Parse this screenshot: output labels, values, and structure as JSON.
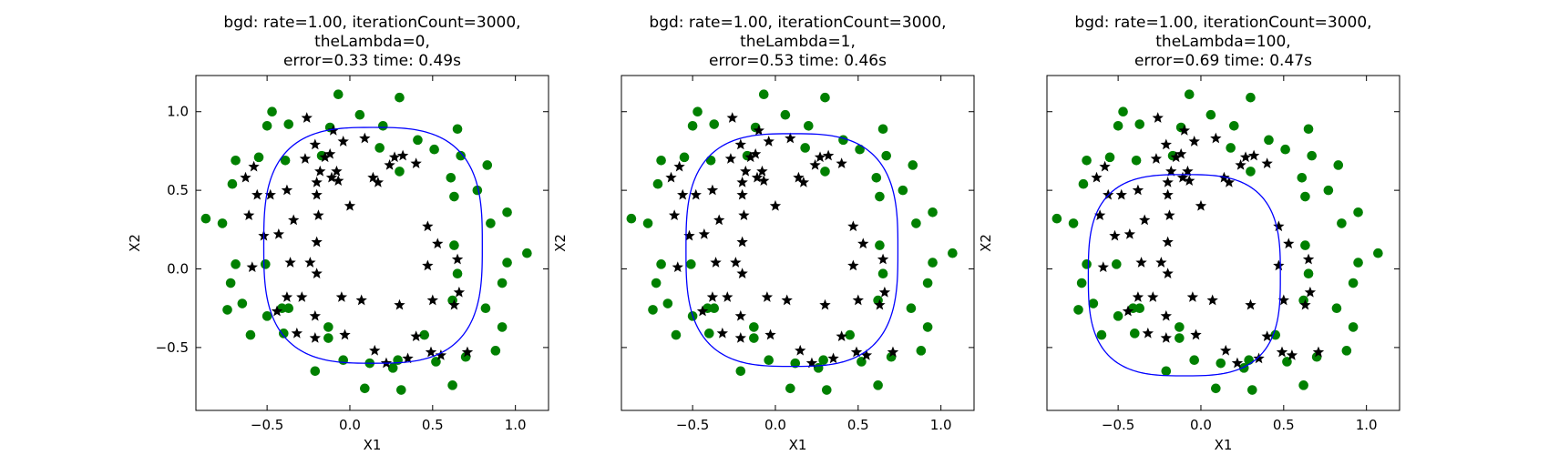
{
  "chart_data": [
    {
      "type": "scatter",
      "title_lines": [
        "bgd: rate=1.00, iterationCount=3000,",
        "theLambda=0,",
        "error=0.33 time: 0.49s"
      ],
      "xlabel": "X1",
      "ylabel": "X2",
      "xlim": [
        -0.93,
        1.2
      ],
      "ylim": [
        -0.9,
        1.23
      ],
      "x_ticks": [
        -0.5,
        0.0,
        0.5,
        1.0
      ],
      "x_tick_labels": [
        "−0.5",
        "0.0",
        "0.5",
        "1.0"
      ],
      "y_ticks": [
        -0.5,
        0.0,
        0.5,
        1.0
      ],
      "y_tick_labels": [
        "−0.5",
        "0.0",
        "0.5",
        "1.0"
      ],
      "show_y_tick_labels": true,
      "boundary": {
        "cx": 0.14,
        "cy": 0.15,
        "rx": 0.66,
        "ry": 0.75,
        "power": 3.0
      }
    },
    {
      "type": "scatter",
      "title_lines": [
        "bgd: rate=1.00, iterationCount=3000,",
        "theLambda=1,",
        "error=0.53 time: 0.46s"
      ],
      "xlabel": "X1",
      "ylabel": "X2",
      "xlim": [
        -0.93,
        1.2
      ],
      "ylim": [
        -0.9,
        1.23
      ],
      "x_ticks": [
        -0.5,
        0.0,
        0.5,
        1.0
      ],
      "x_tick_labels": [
        "−0.5",
        "0.0",
        "0.5",
        "1.0"
      ],
      "y_ticks": [
        -0.5,
        0.0,
        0.5,
        1.0
      ],
      "y_tick_labels": [
        "−0.5",
        "0.0",
        "0.5",
        "1.0"
      ],
      "show_y_tick_labels": false,
      "boundary": {
        "cx": 0.1,
        "cy": 0.12,
        "rx": 0.64,
        "ry": 0.74,
        "power": 3.0
      }
    },
    {
      "type": "scatter",
      "title_lines": [
        "bgd: rate=1.00, iterationCount=3000,",
        "theLambda=100,",
        "error=0.69 time: 0.47s"
      ],
      "xlabel": "X1",
      "ylabel": "X2",
      "xlim": [
        -0.93,
        1.2
      ],
      "ylim": [
        -0.9,
        1.23
      ],
      "x_ticks": [
        -0.5,
        0.0,
        0.5,
        1.0
      ],
      "x_tick_labels": [
        "−0.5",
        "0.0",
        "0.5",
        "1.0"
      ],
      "y_ticks": [
        -0.5,
        0.0,
        0.5,
        1.0
      ],
      "y_tick_labels": [
        "−0.5",
        "0.0",
        "0.5",
        "1.0"
      ],
      "show_y_tick_labels": false,
      "boundary": {
        "cx": -0.1,
        "cy": -0.04,
        "rx": 0.58,
        "ry": 0.64,
        "power": 3.0
      }
    }
  ],
  "data_points": {
    "class_0_marker": "circle",
    "class_0_color": "#008000",
    "class_1_marker": "star",
    "class_1_color": "#000000",
    "class_0": [
      [
        -0.47,
        1.0
      ],
      [
        -0.5,
        0.91
      ],
      [
        -0.37,
        0.92
      ],
      [
        -0.07,
        1.11
      ],
      [
        0.06,
        0.98
      ],
      [
        0.2,
        0.91
      ],
      [
        0.3,
        1.09
      ],
      [
        0.41,
        0.82
      ],
      [
        0.51,
        0.76
      ],
      [
        0.65,
        0.89
      ],
      [
        0.67,
        0.72
      ],
      [
        0.61,
        0.58
      ],
      [
        0.77,
        0.5
      ],
      [
        0.83,
        0.66
      ],
      [
        0.95,
        0.36
      ],
      [
        0.85,
        0.29
      ],
      [
        1.07,
        0.1
      ],
      [
        0.95,
        0.04
      ],
      [
        0.92,
        -0.09
      ],
      [
        0.82,
        -0.25
      ],
      [
        0.92,
        -0.37
      ],
      [
        0.88,
        -0.52
      ],
      [
        0.7,
        -0.56
      ],
      [
        0.52,
        -0.59
      ],
      [
        0.45,
        -0.42
      ],
      [
        0.62,
        -0.74
      ],
      [
        0.31,
        -0.77
      ],
      [
        0.29,
        -0.58
      ],
      [
        0.12,
        -0.6
      ],
      [
        0.09,
        -0.76
      ],
      [
        -0.04,
        -0.58
      ],
      [
        -0.13,
        -0.44
      ],
      [
        -0.13,
        -0.37
      ],
      [
        -0.21,
        -0.65
      ],
      [
        -0.4,
        -0.41
      ],
      [
        -0.41,
        -0.25
      ],
      [
        -0.5,
        -0.3
      ],
      [
        -0.6,
        -0.42
      ],
      [
        -0.65,
        -0.22
      ],
      [
        -0.74,
        -0.26
      ],
      [
        -0.72,
        -0.09
      ],
      [
        -0.69,
        0.03
      ],
      [
        -0.77,
        0.29
      ],
      [
        -0.87,
        0.32
      ],
      [
        -0.69,
        0.69
      ],
      [
        -0.71,
        0.54
      ],
      [
        -0.55,
        0.71
      ],
      [
        -0.39,
        0.69
      ],
      [
        -0.12,
        0.9
      ],
      [
        0.18,
        0.77
      ],
      [
        0.3,
        0.62
      ],
      [
        0.63,
        0.46
      ],
      [
        0.63,
        0.15
      ],
      [
        0.65,
        -0.03
      ],
      [
        0.62,
        -0.2
      ],
      [
        0.26,
        -0.63
      ],
      [
        -0.37,
        -0.25
      ],
      [
        -0.51,
        0.03
      ],
      [
        -0.17,
        0.72
      ]
    ],
    "class_1": [
      [
        -0.26,
        0.96
      ],
      [
        -0.1,
        0.88
      ],
      [
        -0.21,
        0.79
      ],
      [
        -0.04,
        0.81
      ],
      [
        0.09,
        0.83
      ],
      [
        0.32,
        0.72
      ],
      [
        0.24,
        0.66
      ],
      [
        0.4,
        0.67
      ],
      [
        0.14,
        0.58
      ],
      [
        0.17,
        0.55
      ],
      [
        -0.11,
        0.58
      ],
      [
        -0.07,
        0.56
      ],
      [
        -0.2,
        0.55
      ],
      [
        -0.48,
        0.47
      ],
      [
        -0.38,
        0.5
      ],
      [
        -0.2,
        0.47
      ],
      [
        0.0,
        0.4
      ],
      [
        -0.19,
        0.34
      ],
      [
        -0.34,
        0.31
      ],
      [
        -0.61,
        0.34
      ],
      [
        -0.52,
        0.21
      ],
      [
        -0.43,
        0.22
      ],
      [
        -0.2,
        0.17
      ],
      [
        0.47,
        0.27
      ],
      [
        0.53,
        0.16
      ],
      [
        0.47,
        0.02
      ],
      [
        0.65,
        0.06
      ],
      [
        0.66,
        -0.15
      ],
      [
        0.63,
        -0.23
      ],
      [
        0.5,
        -0.2
      ],
      [
        0.3,
        -0.23
      ],
      [
        0.07,
        -0.2
      ],
      [
        -0.05,
        -0.18
      ],
      [
        -0.21,
        -0.3
      ],
      [
        -0.29,
        -0.18
      ],
      [
        -0.38,
        -0.18
      ],
      [
        -0.24,
        0.04
      ],
      [
        -0.36,
        0.04
      ],
      [
        -0.2,
        -0.03
      ],
      [
        -0.59,
        0.01
      ],
      [
        -0.44,
        -0.27
      ],
      [
        -0.32,
        -0.41
      ],
      [
        -0.21,
        -0.44
      ],
      [
        -0.03,
        -0.42
      ],
      [
        0.15,
        -0.52
      ],
      [
        0.22,
        -0.6
      ],
      [
        0.4,
        -0.43
      ],
      [
        0.35,
        -0.57
      ],
      [
        0.49,
        -0.53
      ],
      [
        0.55,
        -0.55
      ],
      [
        0.71,
        -0.53
      ],
      [
        -0.56,
        0.47
      ],
      [
        -0.63,
        0.58
      ],
      [
        -0.58,
        0.65
      ],
      [
        -0.27,
        0.7
      ],
      [
        -0.12,
        0.73
      ],
      [
        0.27,
        0.71
      ],
      [
        -0.15,
        0.71
      ],
      [
        -0.08,
        0.62
      ],
      [
        -0.18,
        0.62
      ]
    ]
  }
}
